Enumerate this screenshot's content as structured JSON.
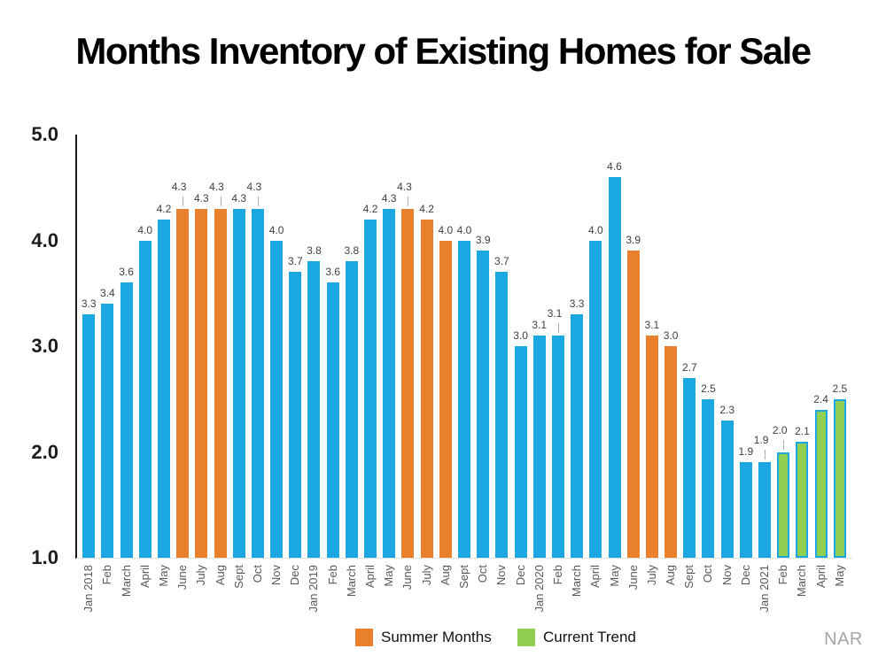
{
  "chart_data": {
    "type": "bar",
    "title": "Months Inventory of Existing Homes for Sale",
    "xlabel": "",
    "ylabel": "",
    "ylim": [
      1.0,
      5.0
    ],
    "yticks": [
      5.0,
      4.0,
      3.0,
      2.0,
      1.0
    ],
    "grid": false,
    "legend_position": "bottom",
    "source": "NAR",
    "colors": {
      "default": "#1aa7e2",
      "summer": "#e8802c",
      "trend": "#8fd052",
      "trend_border": "#1aa7e2",
      "leader_line": "#ababab",
      "value_label": "#3f3f3f",
      "month_label": "#595959"
    },
    "legend": [
      {
        "label": "Summer Months",
        "series": "summer",
        "color": "#e8802c"
      },
      {
        "label": "Current Trend",
        "series": "trend",
        "color": "#8fd052"
      }
    ],
    "points": [
      {
        "label": "Jan 2018",
        "value": 3.3,
        "series": "default",
        "raised": false
      },
      {
        "label": "Feb",
        "value": 3.4,
        "series": "default",
        "raised": false
      },
      {
        "label": "March",
        "value": 3.6,
        "series": "default",
        "raised": false
      },
      {
        "label": "April",
        "value": 4.0,
        "series": "default",
        "raised": false
      },
      {
        "label": "May",
        "value": 4.2,
        "series": "default",
        "raised": false
      },
      {
        "label": "June",
        "value": 4.3,
        "series": "summer",
        "raised": true
      },
      {
        "label": "July",
        "value": 4.3,
        "series": "summer",
        "raised": false
      },
      {
        "label": "Aug",
        "value": 4.3,
        "series": "summer",
        "raised": true
      },
      {
        "label": "Sept",
        "value": 4.3,
        "series": "default",
        "raised": false
      },
      {
        "label": "Oct",
        "value": 4.3,
        "series": "default",
        "raised": true
      },
      {
        "label": "Nov",
        "value": 4.0,
        "series": "default",
        "raised": false
      },
      {
        "label": "Dec",
        "value": 3.7,
        "series": "default",
        "raised": false
      },
      {
        "label": "Jan 2019",
        "value": 3.8,
        "series": "default",
        "raised": false
      },
      {
        "label": "Feb",
        "value": 3.6,
        "series": "default",
        "raised": false
      },
      {
        "label": "March",
        "value": 3.8,
        "series": "default",
        "raised": false
      },
      {
        "label": "April",
        "value": 4.2,
        "series": "default",
        "raised": false
      },
      {
        "label": "May",
        "value": 4.3,
        "series": "default",
        "raised": false
      },
      {
        "label": "June",
        "value": 4.3,
        "series": "summer",
        "raised": true
      },
      {
        "label": "July",
        "value": 4.2,
        "series": "summer",
        "raised": false
      },
      {
        "label": "Aug",
        "value": 4.0,
        "series": "summer",
        "raised": false
      },
      {
        "label": "Sept",
        "value": 4.0,
        "series": "default",
        "raised": false
      },
      {
        "label": "Oct",
        "value": 3.9,
        "series": "default",
        "raised": false
      },
      {
        "label": "Nov",
        "value": 3.7,
        "series": "default",
        "raised": false
      },
      {
        "label": "Dec",
        "value": 3.0,
        "series": "default",
        "raised": false
      },
      {
        "label": "Jan 2020",
        "value": 3.1,
        "series": "default",
        "raised": false
      },
      {
        "label": "Feb",
        "value": 3.1,
        "series": "default",
        "raised": true
      },
      {
        "label": "March",
        "value": 3.3,
        "series": "default",
        "raised": false
      },
      {
        "label": "April",
        "value": 4.0,
        "series": "default",
        "raised": false
      },
      {
        "label": "May",
        "value": 4.6,
        "series": "default",
        "raised": false
      },
      {
        "label": "June",
        "value": 3.9,
        "series": "summer",
        "raised": false
      },
      {
        "label": "July",
        "value": 3.1,
        "series": "summer",
        "raised": false
      },
      {
        "label": "Aug",
        "value": 3.0,
        "series": "summer",
        "raised": false
      },
      {
        "label": "Sept",
        "value": 2.7,
        "series": "default",
        "raised": false
      },
      {
        "label": "Oct",
        "value": 2.5,
        "series": "default",
        "raised": false
      },
      {
        "label": "Nov",
        "value": 2.3,
        "series": "default",
        "raised": false
      },
      {
        "label": "Dec",
        "value": 1.9,
        "series": "default",
        "raised": false
      },
      {
        "label": "Jan 2021",
        "value": 1.9,
        "series": "default",
        "raised": true
      },
      {
        "label": "Feb",
        "value": 2.0,
        "series": "trend",
        "raised": true
      },
      {
        "label": "March",
        "value": 2.1,
        "series": "trend",
        "raised": false
      },
      {
        "label": "April",
        "value": 2.4,
        "series": "trend",
        "raised": false
      },
      {
        "label": "May",
        "value": 2.5,
        "series": "trend",
        "raised": false
      }
    ]
  }
}
